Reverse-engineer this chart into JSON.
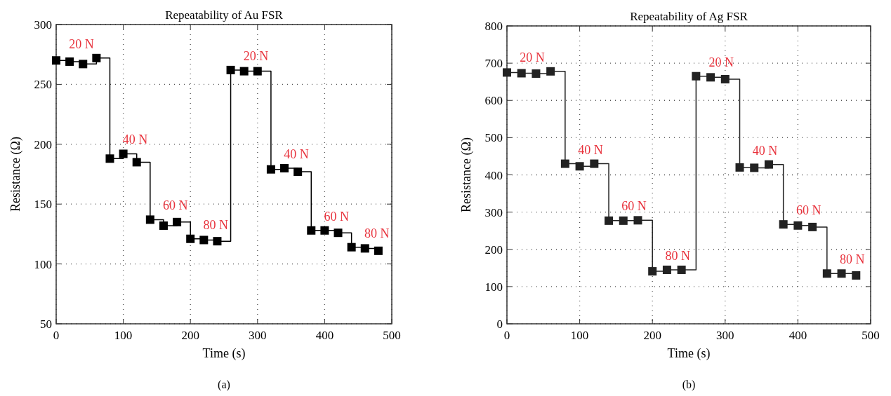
{
  "chart_data": [
    {
      "type": "step",
      "title": "Repeatability of Au FSR",
      "xlabel": "Time (s)",
      "ylabel": "Resistance (Ω)",
      "x": [
        0,
        20,
        40,
        60,
        80,
        100,
        120,
        140,
        160,
        180,
        200,
        220,
        240,
        260,
        280,
        300,
        320,
        340,
        360,
        380,
        400,
        420,
        440,
        460,
        480
      ],
      "series": [
        {
          "color": "#000000",
          "values": [
            270,
            269,
            267,
            272,
            188,
            192,
            185,
            137,
            132,
            135,
            121,
            120,
            119,
            262,
            261,
            261,
            179,
            180,
            177,
            128,
            128,
            126,
            114,
            113,
            111
          ]
        }
      ],
      "xlim": [
        0,
        500
      ],
      "xticks": [
        0,
        100,
        200,
        300,
        400,
        500
      ],
      "ylim": [
        50,
        300
      ],
      "yticks": [
        50,
        100,
        150,
        200,
        250,
        300
      ],
      "grid": true,
      "marker": "square",
      "line_style": "solid",
      "annotations": [
        "20 N",
        "40 N",
        "60 N",
        "80 N",
        "20 N",
        "40 N",
        "60 N",
        "80 N",
        "(a)"
      ]
    },
    {
      "type": "step",
      "title": "Repeatability of Ag FSR",
      "xlabel": "Time (s)",
      "ylabel": "Resistance (Ω)",
      "x": [
        0,
        20,
        40,
        60,
        80,
        100,
        120,
        140,
        160,
        180,
        200,
        220,
        240,
        260,
        280,
        300,
        320,
        340,
        360,
        380,
        400,
        420,
        440,
        460,
        480
      ],
      "series": [
        {
          "color": "#222222",
          "values": [
            675,
            673,
            672,
            678,
            430,
            423,
            430,
            277,
            277,
            278,
            141,
            145,
            145,
            665,
            662,
            657,
            420,
            419,
            428,
            267,
            264,
            260,
            135,
            135,
            130
          ]
        }
      ],
      "xlim": [
        0,
        500
      ],
      "xticks": [
        0,
        100,
        200,
        300,
        400,
        500
      ],
      "ylim": [
        0,
        800
      ],
      "yticks": [
        0,
        100,
        200,
        300,
        400,
        500,
        600,
        700,
        800
      ],
      "grid": true,
      "marker": "square",
      "line_style": "solid",
      "annotations": [
        "20 N",
        "40 N",
        "60 N",
        "80 N",
        "20 N",
        "40 N",
        "60 N",
        "80 N",
        "(b)"
      ]
    }
  ]
}
